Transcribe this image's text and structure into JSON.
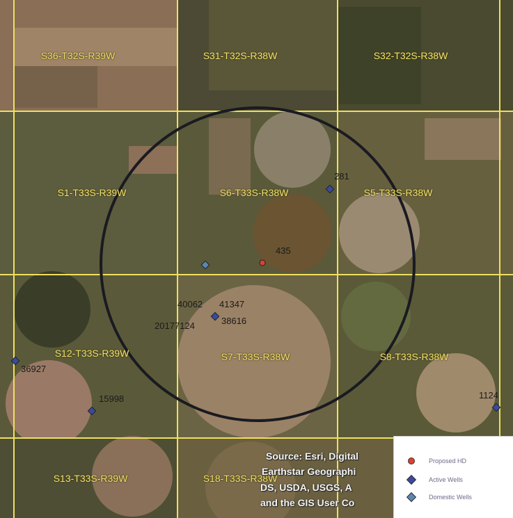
{
  "sections": [
    {
      "label": "S36-T32S-R39W"
    },
    {
      "label": "S31-T32S-R38W"
    },
    {
      "label": "S32-T32S-R38W"
    },
    {
      "label": "S1-T33S-R39W"
    },
    {
      "label": "S6-T33S-R38W"
    },
    {
      "label": "S5-T33S-R38W"
    },
    {
      "label": "S12-T33S-R39W"
    },
    {
      "label": "S7-T33S-R38W"
    },
    {
      "label": "S8-T33S-R38W"
    },
    {
      "label": "S13-T33S-R39W"
    },
    {
      "label": "S18-T33S-R38W"
    }
  ],
  "wells": [
    {
      "label": "281",
      "type": "active"
    },
    {
      "label": "435",
      "type": "proposed"
    },
    {
      "label": "",
      "type": "domestic"
    },
    {
      "label": "38616",
      "type": "active"
    },
    {
      "label": "36927",
      "type": "active"
    },
    {
      "label": "15998",
      "type": "active"
    },
    {
      "label": "1124",
      "type": "active"
    }
  ],
  "well_labels": [
    {
      "text": "40062"
    },
    {
      "text": "41347"
    },
    {
      "text": "20177124"
    }
  ],
  "source": {
    "lines": [
      "Source: Esri, Digital",
      "Earthstar Geographi",
      "DS, USDA, USGS, A",
      "and the GIS User Co"
    ]
  },
  "legend": {
    "items": [
      {
        "label": "Proposed HD",
        "color": "#e04030"
      },
      {
        "label": "Active Wells",
        "color": "#3a4aa0"
      },
      {
        "label": "Domestic Wells",
        "color": "#5a88b0"
      }
    ]
  },
  "colors": {
    "section_lines": "#f0e060",
    "radius_circle": "#1a1a22",
    "section_text": "#f2e46a"
  }
}
